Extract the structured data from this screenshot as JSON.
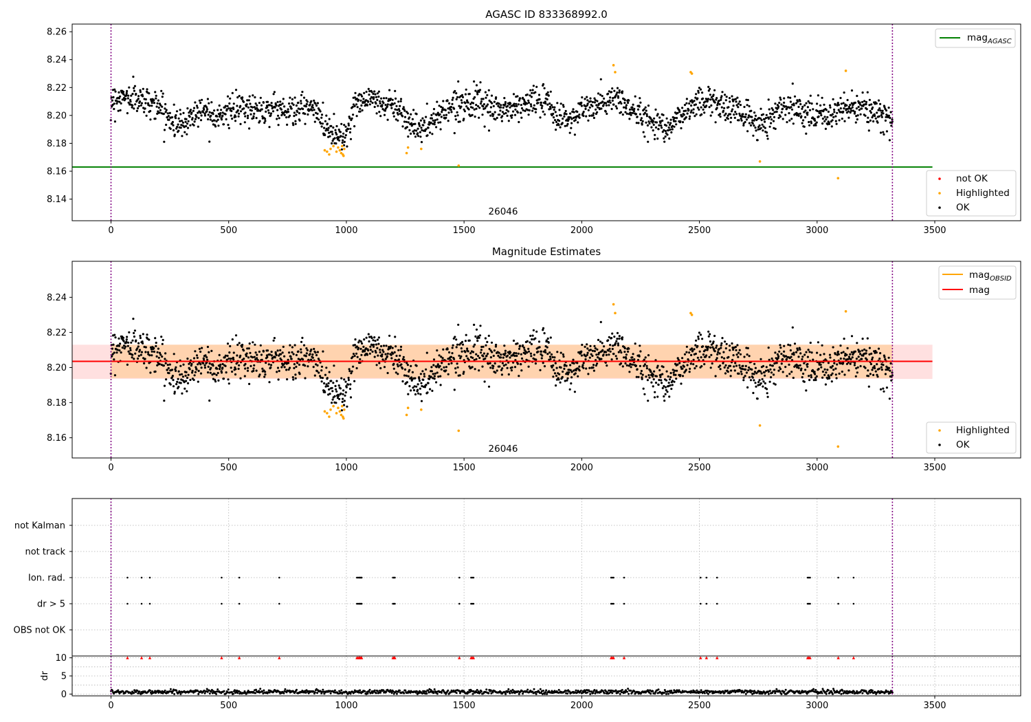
{
  "chart_data": [
    {
      "type": "scatter",
      "title": "AGASC ID 833368992.0",
      "xlim": [
        -165,
        3865
      ],
      "ylim": [
        8.1245,
        8.2655
      ],
      "xticks": [
        0,
        500,
        1000,
        1500,
        2000,
        2500,
        3000,
        3500
      ],
      "yticks": [
        8.14,
        8.16,
        8.18,
        8.2,
        8.22,
        8.24,
        8.26
      ],
      "grid": false,
      "annotation": "26046",
      "vlines": [
        0,
        3320
      ],
      "lines": [
        {
          "name": "mag",
          "subscript": "AGASC",
          "y": 8.163,
          "x_range": [
            -165,
            3490
          ],
          "color": "#008000"
        }
      ],
      "legend_upper": {
        "position": "top-right",
        "entries": [
          {
            "label": "mag",
            "subscript": "AGASC",
            "color": "#008000",
            "kind": "line"
          }
        ]
      },
      "legend_lower": {
        "position": "lower-right",
        "entries": [
          {
            "label": "not OK",
            "color": "#ff0000",
            "kind": "marker"
          },
          {
            "label": "Highlighted",
            "color": "#ffa500",
            "kind": "marker"
          },
          {
            "label": "OK",
            "color": "#000000",
            "kind": "marker"
          }
        ]
      },
      "series": [
        {
          "name": "OK",
          "color": "#000000",
          "x_range": [
            0,
            3320
          ],
          "n_points": 1900,
          "trend": {
            "x": [
              0,
              50,
              100,
              150,
              200,
              250,
              300,
              350,
              400,
              450,
              500,
              550,
              600,
              650,
              700,
              750,
              800,
              850,
              900,
              950,
              1000,
              1050,
              1100,
              1150,
              1200,
              1250,
              1300,
              1350,
              1400,
              1450,
              1500,
              1550,
              1600,
              1650,
              1700,
              1750,
              1800,
              1850,
              1900,
              1950,
              2000,
              2050,
              2100,
              2150,
              2200,
              2250,
              2300,
              2350,
              2400,
              2450,
              2500,
              2550,
              2600,
              2650,
              2700,
              2750,
              2800,
              2850,
              2900,
              2950,
              3000,
              3050,
              3100,
              3150,
              3200,
              3250,
              3300,
              3320
            ],
            "y": [
              8.211,
              8.213,
              8.212,
              8.21,
              8.208,
              8.197,
              8.193,
              8.201,
              8.205,
              8.2,
              8.203,
              8.204,
              8.205,
              8.204,
              8.206,
              8.203,
              8.204,
              8.206,
              8.196,
              8.186,
              8.187,
              8.211,
              8.213,
              8.208,
              8.208,
              8.2,
              8.19,
              8.192,
              8.202,
              8.207,
              8.21,
              8.209,
              8.205,
              8.204,
              8.205,
              8.207,
              8.211,
              8.209,
              8.199,
              8.197,
              8.204,
              8.206,
              8.209,
              8.213,
              8.205,
              8.2,
              8.196,
              8.193,
              8.195,
              8.205,
              8.21,
              8.211,
              8.206,
              8.205,
              8.2,
              8.193,
              8.199,
              8.206,
              8.206,
              8.204,
              8.201,
              8.199,
              8.203,
              8.206,
              8.204,
              8.202,
              8.197,
              8.194
            ]
          },
          "noise_sd": 0.007
        },
        {
          "name": "Highlighted",
          "color": "#ffa500",
          "x": [
            908,
            918,
            927,
            933,
            945,
            958,
            965,
            972,
            978,
            982,
            985,
            988,
            991,
            1256,
            1262,
            1318,
            1477,
            2135,
            2142,
            2463,
            2468,
            2757,
            3089,
            3122
          ],
          "y": [
            8.175,
            8.174,
            8.172,
            8.176,
            8.178,
            8.174,
            8.177,
            8.175,
            8.173,
            8.178,
            8.172,
            8.171,
            8.176,
            8.173,
            8.177,
            8.176,
            8.164,
            8.236,
            8.231,
            8.231,
            8.23,
            8.167,
            8.155,
            8.232
          ]
        }
      ]
    },
    {
      "type": "scatter",
      "title": "Magnitude Estimates",
      "xlim": [
        -165,
        3865
      ],
      "ylim": [
        8.1485,
        8.2605
      ],
      "xticks": [
        0,
        500,
        1000,
        1500,
        2000,
        2500,
        3000,
        3500
      ],
      "yticks": [
        8.16,
        8.18,
        8.2,
        8.22,
        8.24
      ],
      "grid": false,
      "annotation": "26046",
      "vlines": [
        0,
        3320
      ],
      "lines": [
        {
          "name": "mag",
          "subscript": "OBSID",
          "y": 8.2035,
          "x_range": [
            0,
            3320
          ],
          "color": "#ffa500",
          "band": [
            8.194,
            8.213
          ]
        },
        {
          "name": "mag",
          "y": 8.2035,
          "x_range": [
            -165,
            3490
          ],
          "color": "#ff0000",
          "band": [
            8.1935,
            8.213
          ]
        }
      ],
      "legend_upper": {
        "position": "top-right",
        "entries": [
          {
            "label": "mag",
            "subscript": "OBSID",
            "color": "#ffa500",
            "kind": "line"
          },
          {
            "label": "mag",
            "color": "#ff0000",
            "kind": "line"
          }
        ]
      },
      "legend_lower": {
        "position": "lower-right",
        "entries": [
          {
            "label": "Highlighted",
            "color": "#ffa500",
            "kind": "marker"
          },
          {
            "label": "OK",
            "color": "#000000",
            "kind": "marker"
          }
        ]
      }
    },
    {
      "type": "scatter",
      "xlim": [
        -165,
        3865
      ],
      "xticks": [
        0,
        500,
        1000,
        1500,
        2000,
        2500,
        3000,
        3500
      ],
      "categories": [
        "OBS not OK",
        "dr > 5",
        "Ion. rad.",
        "not track",
        "not Kalman"
      ],
      "flag_x": [
        70,
        130,
        165,
        470,
        545,
        715,
        1045,
        1050,
        1055,
        1058,
        1062,
        1065,
        1198,
        1202,
        1206,
        1480,
        1530,
        1535,
        1540,
        2125,
        2130,
        2135,
        2180,
        2505,
        2530,
        2575,
        2960,
        2965,
        2970,
        3090,
        3155
      ],
      "flag_rows": [
        "dr > 5",
        "Ion. rad."
      ],
      "grid": true,
      "vlines": [
        0,
        3320
      ]
    },
    {
      "type": "scatter",
      "ylabel": "dr",
      "xlim": [
        -165,
        3865
      ],
      "ylim": [
        -0.5,
        10.5
      ],
      "xticks": [
        0,
        500,
        1000,
        1500,
        2000,
        2500,
        3000,
        3500
      ],
      "yticks": [
        0,
        5,
        10
      ],
      "grid": true,
      "vlines": [
        0,
        3320
      ],
      "series": [
        {
          "name": "dr",
          "color": "#000000",
          "x_range": [
            0,
            3320
          ],
          "typical": 0.6,
          "noise_sd": 0.3
        },
        {
          "name": "dr clipped",
          "color": "#ff0000",
          "marker": "triangle",
          "y": 10,
          "x": [
            70,
            130,
            165,
            470,
            545,
            715,
            1045,
            1050,
            1055,
            1058,
            1062,
            1065,
            1198,
            1202,
            1206,
            1480,
            1530,
            1535,
            1540,
            2125,
            2130,
            2135,
            2180,
            2505,
            2530,
            2575,
            2960,
            2965,
            2970,
            3090,
            3155
          ]
        }
      ]
    }
  ]
}
